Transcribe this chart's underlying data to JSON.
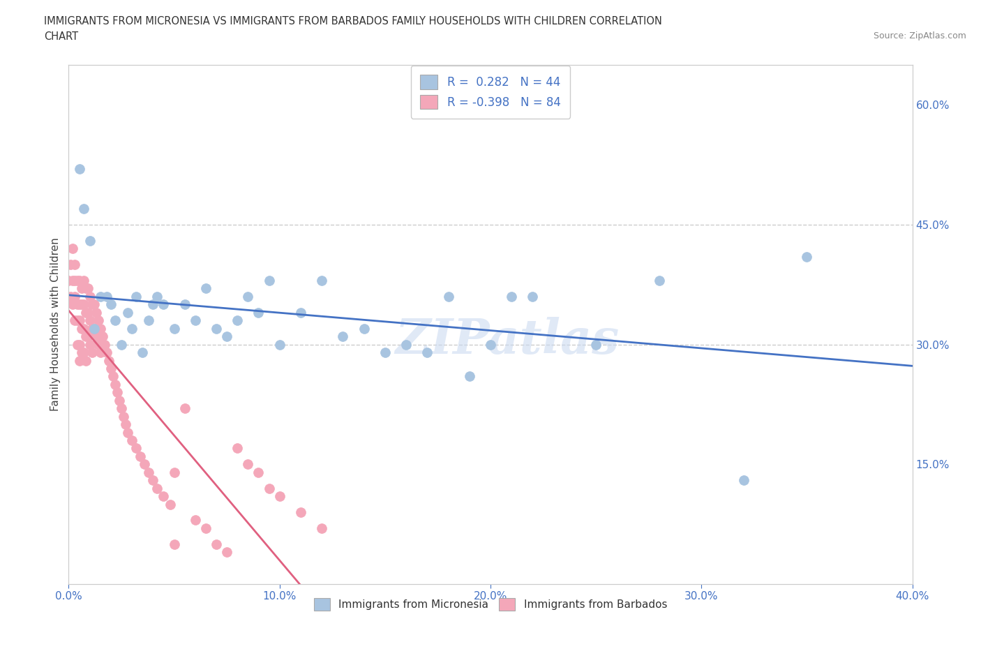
{
  "title_line1": "IMMIGRANTS FROM MICRONESIA VS IMMIGRANTS FROM BARBADOS FAMILY HOUSEHOLDS WITH CHILDREN CORRELATION",
  "title_line2": "CHART",
  "source": "Source: ZipAtlas.com",
  "ylabel": "Family Households with Children",
  "xlim": [
    0.0,
    0.4
  ],
  "ylim": [
    0.0,
    0.65
  ],
  "xticks": [
    0.0,
    0.1,
    0.2,
    0.3,
    0.4
  ],
  "xticklabels": [
    "0.0%",
    "10.0%",
    "20.0%",
    "30.0%",
    "40.0%"
  ],
  "right_yticks": [
    0.0,
    0.15,
    0.3,
    0.45,
    0.6
  ],
  "right_yticklabels": [
    "",
    "15.0%",
    "30.0%",
    "45.0%",
    "60.0%"
  ],
  "micronesia_color": "#a8c4e0",
  "barbados_color": "#f4a7b9",
  "micronesia_R": 0.282,
  "micronesia_N": 44,
  "barbados_R": -0.398,
  "barbados_N": 84,
  "trend_micronesia_color": "#4472c4",
  "trend_barbados_color": "#e06080",
  "watermark": "ZIPatlas",
  "hline_y1": 0.45,
  "hline_y2": 0.3,
  "micronesia_x": [
    0.005,
    0.007,
    0.01,
    0.012,
    0.015,
    0.018,
    0.02,
    0.022,
    0.025,
    0.028,
    0.03,
    0.032,
    0.035,
    0.038,
    0.04,
    0.042,
    0.045,
    0.05,
    0.055,
    0.06,
    0.065,
    0.07,
    0.075,
    0.08,
    0.085,
    0.09,
    0.095,
    0.1,
    0.11,
    0.12,
    0.13,
    0.14,
    0.15,
    0.16,
    0.17,
    0.18,
    0.19,
    0.2,
    0.21,
    0.22,
    0.25,
    0.28,
    0.32,
    0.35
  ],
  "micronesia_y": [
    0.52,
    0.47,
    0.43,
    0.32,
    0.36,
    0.36,
    0.35,
    0.33,
    0.3,
    0.34,
    0.32,
    0.36,
    0.29,
    0.33,
    0.35,
    0.36,
    0.35,
    0.32,
    0.35,
    0.33,
    0.37,
    0.32,
    0.31,
    0.33,
    0.36,
    0.34,
    0.38,
    0.3,
    0.34,
    0.38,
    0.31,
    0.32,
    0.29,
    0.3,
    0.29,
    0.36,
    0.26,
    0.3,
    0.36,
    0.36,
    0.3,
    0.38,
    0.13,
    0.41
  ],
  "barbados_x": [
    0.0,
    0.001,
    0.001,
    0.002,
    0.002,
    0.002,
    0.003,
    0.003,
    0.003,
    0.003,
    0.004,
    0.004,
    0.004,
    0.004,
    0.005,
    0.005,
    0.005,
    0.005,
    0.005,
    0.006,
    0.006,
    0.006,
    0.006,
    0.007,
    0.007,
    0.007,
    0.007,
    0.008,
    0.008,
    0.008,
    0.008,
    0.009,
    0.009,
    0.009,
    0.01,
    0.01,
    0.01,
    0.011,
    0.011,
    0.011,
    0.012,
    0.012,
    0.013,
    0.013,
    0.014,
    0.014,
    0.015,
    0.015,
    0.016,
    0.017,
    0.018,
    0.019,
    0.02,
    0.021,
    0.022,
    0.023,
    0.024,
    0.025,
    0.026,
    0.027,
    0.028,
    0.03,
    0.032,
    0.034,
    0.036,
    0.038,
    0.04,
    0.042,
    0.045,
    0.048,
    0.05,
    0.055,
    0.06,
    0.065,
    0.07,
    0.075,
    0.08,
    0.085,
    0.09,
    0.095,
    0.1,
    0.11,
    0.12,
    0.05
  ],
  "barbados_y": [
    0.38,
    0.4,
    0.36,
    0.42,
    0.38,
    0.35,
    0.4,
    0.38,
    0.36,
    0.33,
    0.38,
    0.35,
    0.33,
    0.3,
    0.38,
    0.35,
    0.33,
    0.3,
    0.28,
    0.37,
    0.35,
    0.32,
    0.29,
    0.38,
    0.35,
    0.32,
    0.29,
    0.37,
    0.34,
    0.31,
    0.28,
    0.37,
    0.34,
    0.31,
    0.36,
    0.33,
    0.3,
    0.35,
    0.32,
    0.29,
    0.35,
    0.32,
    0.34,
    0.31,
    0.33,
    0.3,
    0.32,
    0.29,
    0.31,
    0.3,
    0.29,
    0.28,
    0.27,
    0.26,
    0.25,
    0.24,
    0.23,
    0.22,
    0.21,
    0.2,
    0.19,
    0.18,
    0.17,
    0.16,
    0.15,
    0.14,
    0.13,
    0.12,
    0.11,
    0.1,
    0.14,
    0.22,
    0.08,
    0.07,
    0.05,
    0.04,
    0.17,
    0.15,
    0.14,
    0.12,
    0.11,
    0.09,
    0.07,
    0.05
  ]
}
